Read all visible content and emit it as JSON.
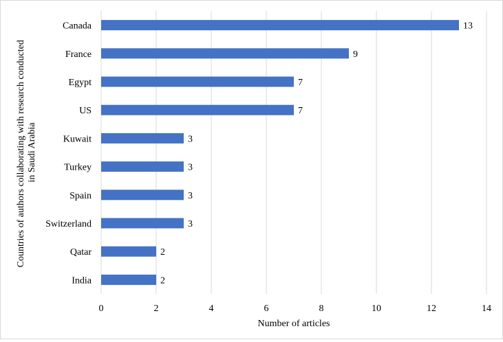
{
  "chart_data": {
    "type": "bar",
    "orientation": "horizontal",
    "title": "",
    "xlabel": "Number of articles",
    "ylabel": "Countries of authors collaborating with research conducted in Saudi Arabia",
    "ylabel_lines": [
      "Countries of authors collaborating with research conducted",
      "in Saudi Arabia"
    ],
    "categories": [
      "Canada",
      "France",
      "Egypt",
      "US",
      "Kuwait",
      "Turkey",
      "Spain",
      "Switzerland",
      "Qatar",
      "India"
    ],
    "values": [
      13,
      9,
      7,
      7,
      3,
      3,
      3,
      3,
      2,
      2
    ],
    "xlim": [
      0,
      14
    ],
    "xticks": [
      "0",
      "2",
      "4",
      "6",
      "8",
      "10",
      "12",
      "14"
    ],
    "grid": "vertical",
    "legend": "none",
    "colors": {
      "bar": "#4472C4",
      "grid": "#d9d9d9"
    }
  }
}
